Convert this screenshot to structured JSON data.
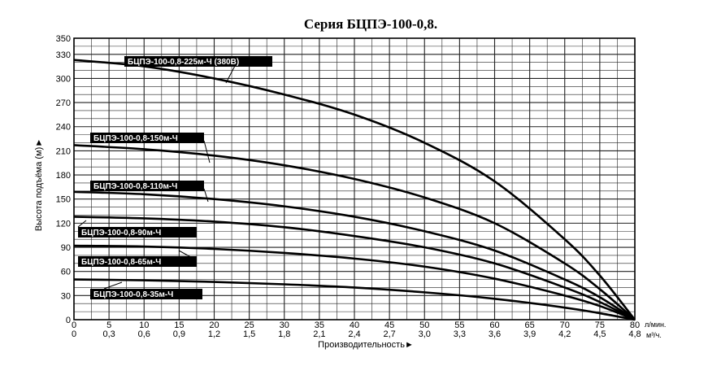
{
  "chart_data": {
    "type": "line",
    "title": "Серия БЦПЭ-100-0,8.",
    "xlabel": "Производительность►",
    "ylabel": "Высота подъёма (м)►",
    "xlim": [
      0,
      80
    ],
    "ylim": [
      0,
      350
    ],
    "x_ticks": [
      "0",
      "5",
      "10",
      "15",
      "20",
      "25",
      "30",
      "35",
      "40",
      "45",
      "50",
      "55",
      "60",
      "65",
      "70",
      "75",
      "80"
    ],
    "x_ticks_secondary": [
      "0",
      "0,3",
      "0,6",
      "0,9",
      "1,2",
      "1,5",
      "1,8",
      "2,1",
      "2,4",
      "2,7",
      "3,0",
      "3,3",
      "3,6",
      "3,9",
      "4,2",
      "4,5",
      "4,8"
    ],
    "x_unit_primary": "л/мин.",
    "x_unit_secondary": "м³/ч.",
    "y_ticks": [
      "0",
      "30",
      "60",
      "90",
      "120",
      "150",
      "180",
      "210",
      "240",
      "270",
      "300",
      "330",
      "350"
    ],
    "grid": true,
    "series": [
      {
        "name": "БЦПЭ-100-0,8-225м-Ч (380В)",
        "x": [
          0,
          10,
          20,
          30,
          40,
          50,
          60,
          70,
          75,
          80
        ],
        "values": [
          323,
          315,
          300,
          280,
          255,
          220,
          172,
          100,
          55,
          0
        ]
      },
      {
        "name": "БЦПЭ-100-0,8-150м-Ч",
        "x": [
          0,
          10,
          20,
          30,
          40,
          50,
          60,
          70,
          75,
          80
        ],
        "values": [
          217,
          212,
          204,
          192,
          175,
          152,
          120,
          70,
          38,
          0
        ]
      },
      {
        "name": "БЦПЭ-100-0,8-110м-Ч",
        "x": [
          0,
          10,
          20,
          30,
          40,
          50,
          60,
          70,
          75,
          80
        ],
        "values": [
          159,
          156,
          150,
          141,
          128,
          110,
          86,
          50,
          28,
          0
        ]
      },
      {
        "name": "БЦПЭ-100-0,8-90м-Ч",
        "x": [
          0,
          10,
          20,
          30,
          40,
          50,
          60,
          70,
          75,
          80
        ],
        "values": [
          128,
          126,
          122,
          115,
          104,
          90,
          70,
          40,
          22,
          0
        ]
      },
      {
        "name": "БЦПЭ-100-0,8-65м-Ч",
        "x": [
          0,
          10,
          20,
          30,
          40,
          50,
          60,
          70,
          75,
          80
        ],
        "values": [
          92,
          91,
          88,
          83,
          76,
          66,
          51,
          30,
          17,
          0
        ]
      },
      {
        "name": "БЦПЭ-100-0,8-35м-Ч",
        "x": [
          0,
          10,
          20,
          30,
          40,
          50,
          60,
          70,
          75,
          80
        ],
        "values": [
          50,
          49,
          47,
          44,
          40,
          34,
          26,
          15,
          8,
          0
        ]
      }
    ]
  }
}
